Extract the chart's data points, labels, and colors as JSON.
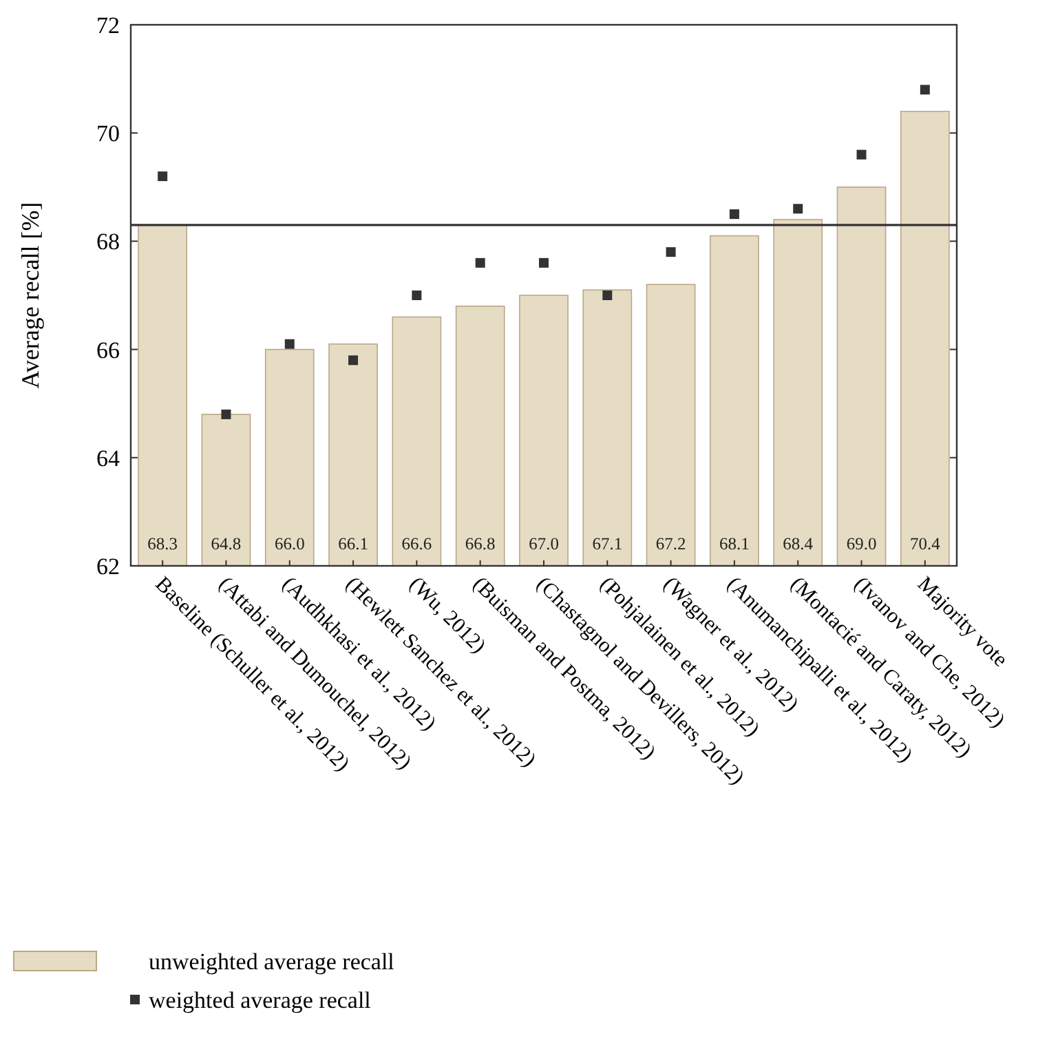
{
  "chart_data": {
    "type": "bar",
    "ylabel": "Average recall [%]",
    "categories": [
      "Baseline (Schuller et al., 2012)",
      "(Attabi and Dumouchel, 2012)",
      "(Audhkhasi et al., 2012)",
      "(Hewlett Sanchez et al., 2012)",
      "(Wu, 2012)",
      "(Buisman and Postma, 2012)",
      "(Chastagnol and Devillers, 2012)",
      "(Pohjalainen et al., 2012)",
      "(Wagner et al., 2012)",
      "(Anumanchipalli et al., 2012)",
      "(Montacié and Caraty, 2012)",
      "(Ivanov and Che, 2012)",
      "Majority vote"
    ],
    "series": [
      {
        "name": "unweighted average recall",
        "color": "#e6dcc3",
        "values": [
          68.3,
          64.8,
          66.0,
          66.1,
          66.6,
          66.8,
          67.0,
          67.1,
          67.2,
          68.1,
          68.4,
          69.0,
          70.4
        ],
        "value_labels": [
          "68.3",
          "64.8",
          "66.0",
          "66.1",
          "66.6",
          "66.8",
          "67.0",
          "67.1",
          "67.2",
          "68.1",
          "68.4",
          "69.0",
          "70.4"
        ]
      },
      {
        "name": "weighted average recall",
        "type": "scatter",
        "color": "#333333",
        "values": [
          69.2,
          64.8,
          66.1,
          65.8,
          67.0,
          67.6,
          67.6,
          67.0,
          67.8,
          68.5,
          68.6,
          69.6,
          70.8
        ]
      }
    ],
    "marker": "square",
    "ylim": [
      62,
      72
    ],
    "yticks": [
      62,
      64,
      66,
      68,
      70,
      72
    ],
    "ref_lines": [
      {
        "axis": "y",
        "value": 68.3,
        "color": "#333333"
      }
    ],
    "grid": false,
    "legend": "bottom"
  }
}
